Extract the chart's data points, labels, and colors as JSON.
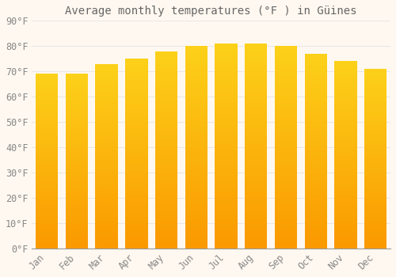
{
  "title": "Average monthly temperatures (°F ) in Güines",
  "months": [
    "Jan",
    "Feb",
    "Mar",
    "Apr",
    "May",
    "Jun",
    "Jul",
    "Aug",
    "Sep",
    "Oct",
    "Nov",
    "Dec"
  ],
  "values": [
    69,
    69,
    73,
    75,
    78,
    80,
    81,
    81,
    80,
    77,
    74,
    71
  ],
  "bar_color": "#FFA500",
  "bar_color_light": "#FFD080",
  "background_color": "#FFF8F0",
  "grid_color": "#E8E8E8",
  "text_color": "#888888",
  "axis_color": "#999999",
  "ylim": [
    0,
    90
  ],
  "yticks": [
    0,
    10,
    20,
    30,
    40,
    50,
    60,
    70,
    80,
    90
  ],
  "title_fontsize": 10,
  "tick_fontsize": 8.5,
  "title_color": "#666666"
}
